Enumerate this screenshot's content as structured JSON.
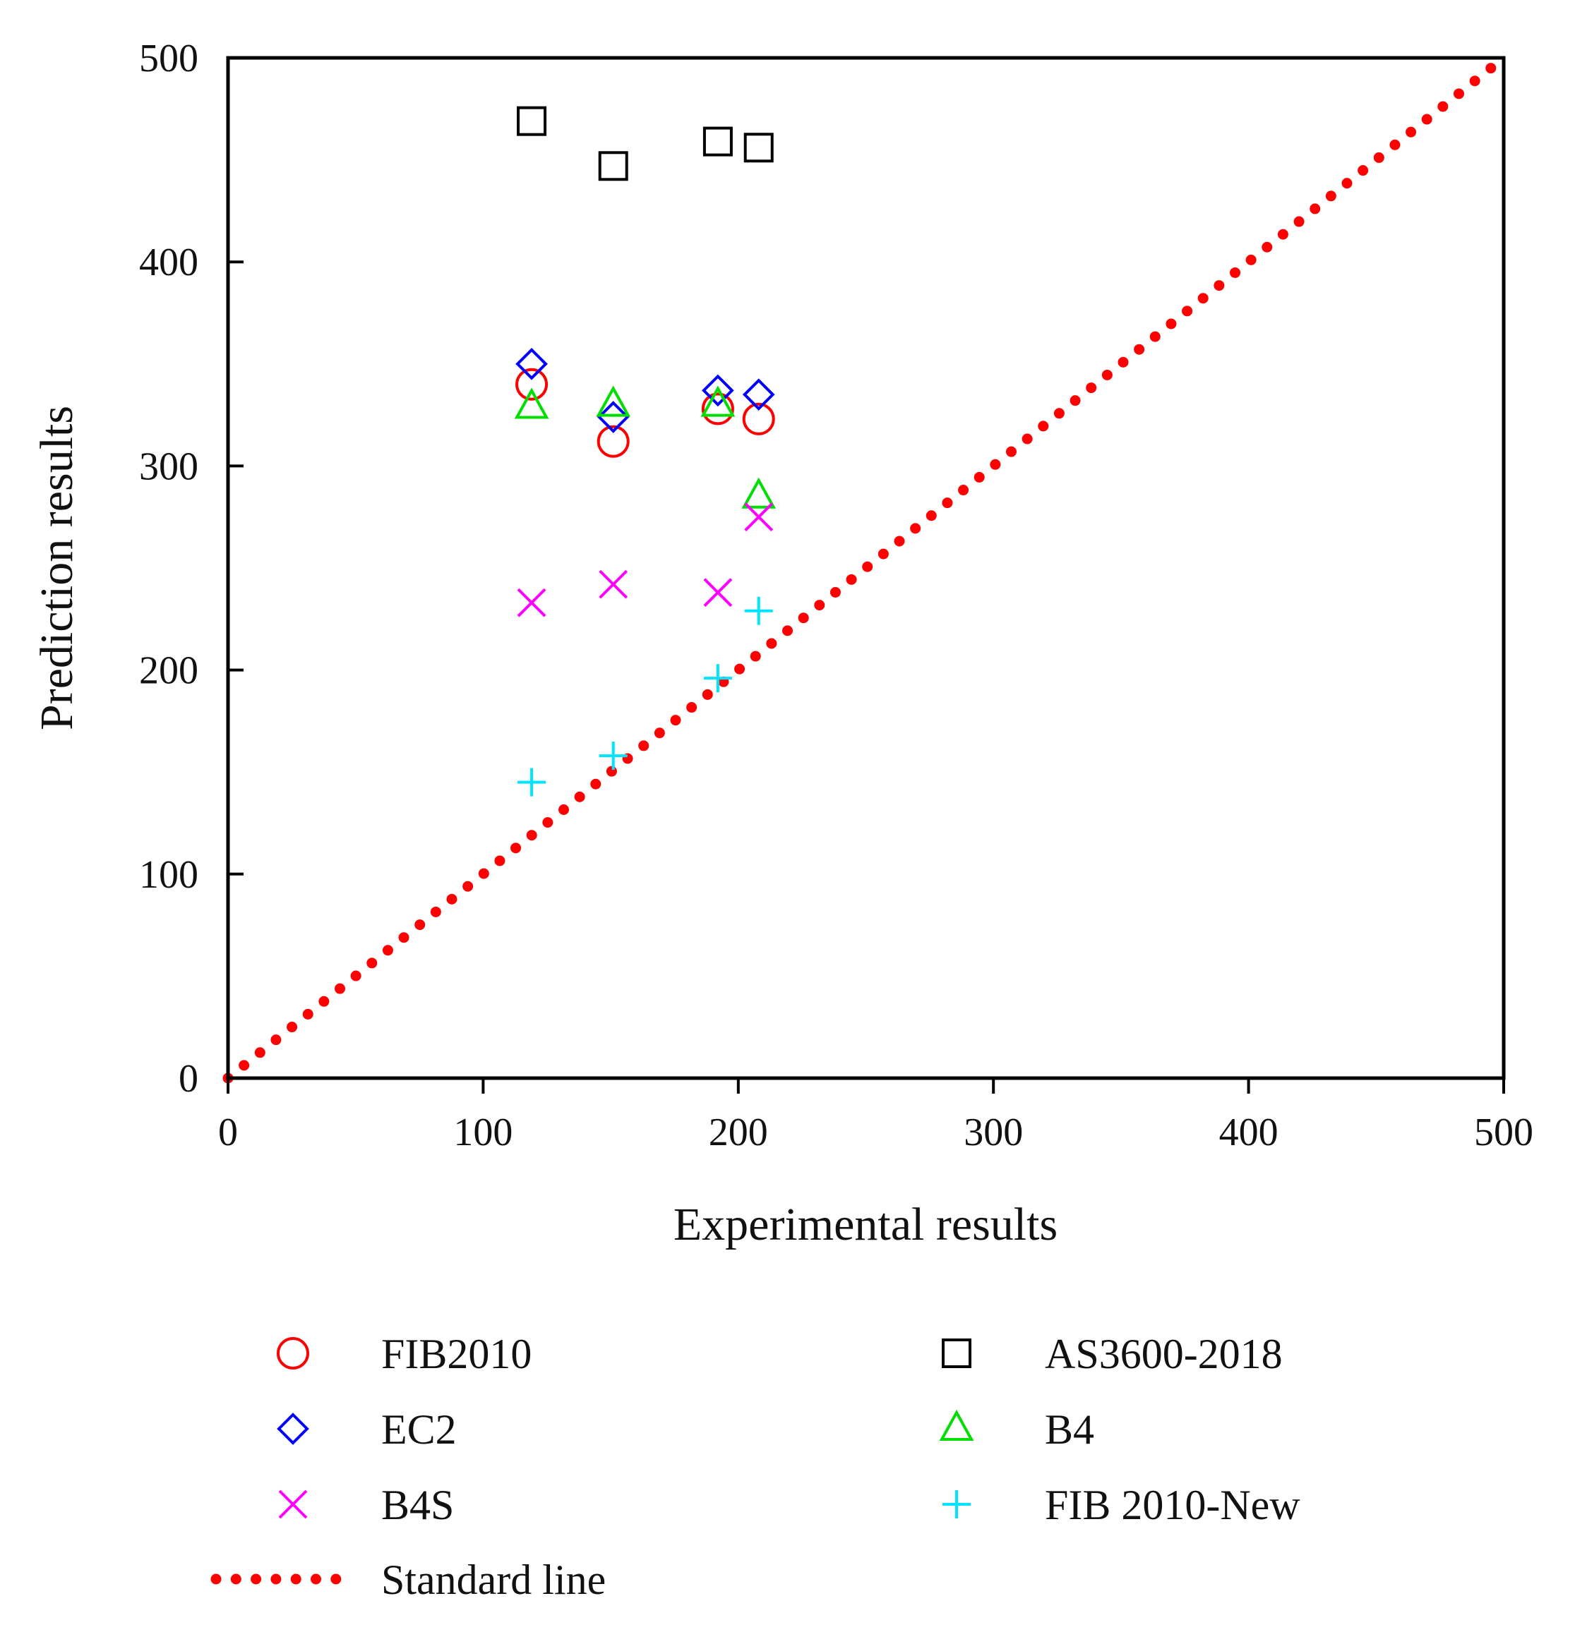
{
  "chart_data": {
    "type": "scatter",
    "title": "",
    "xlabel": "Experimental results",
    "ylabel": "Prediction results",
    "xlim": [
      0,
      500
    ],
    "ylim": [
      0,
      500
    ],
    "xticks": [
      "0",
      "100",
      "200",
      "300",
      "400",
      "500"
    ],
    "yticks": [
      "0",
      "100",
      "200",
      "300",
      "400",
      "500"
    ],
    "grid": false,
    "legend_position": "bottom",
    "series": [
      {
        "name": "FIB2010",
        "marker": "circle",
        "color": "#ff0000",
        "points": [
          [
            119,
            340
          ],
          [
            151,
            312
          ],
          [
            192,
            328
          ],
          [
            208,
            323
          ]
        ]
      },
      {
        "name": "AS3600-2018",
        "marker": "square",
        "color": "#000000",
        "points": [
          [
            119,
            469
          ],
          [
            151,
            447
          ],
          [
            192,
            459
          ],
          [
            208,
            456
          ]
        ]
      },
      {
        "name": "EC2",
        "marker": "diamond",
        "color": "#0000ff",
        "points": [
          [
            119,
            350
          ],
          [
            151,
            324
          ],
          [
            192,
            337
          ],
          [
            208,
            335
          ]
        ]
      },
      {
        "name": "B4",
        "marker": "triangle",
        "color": "#00dd00",
        "points": [
          [
            119,
            329
          ],
          [
            151,
            330
          ],
          [
            192,
            330
          ],
          [
            208,
            285
          ]
        ]
      },
      {
        "name": "B4S",
        "marker": "x",
        "color": "#ff00ff",
        "points": [
          [
            119,
            233
          ],
          [
            151,
            242
          ],
          [
            192,
            238
          ],
          [
            208,
            275
          ]
        ]
      },
      {
        "name": "FIB 2010-New",
        "marker": "plus",
        "color": "#00e5ff",
        "points": [
          [
            119,
            145
          ],
          [
            151,
            158
          ],
          [
            192,
            196
          ],
          [
            208,
            229
          ]
        ]
      }
    ],
    "reference_line": {
      "name": "Standard line",
      "style": "dotted",
      "color": "#ff0000",
      "from": [
        0,
        0
      ],
      "to": [
        500,
        500
      ]
    }
  }
}
